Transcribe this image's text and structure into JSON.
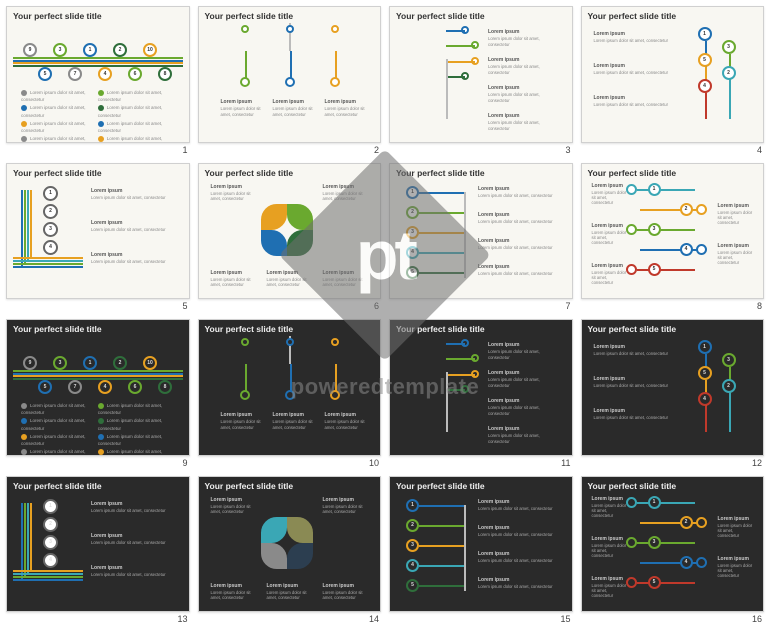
{
  "watermark": {
    "logo": "pt",
    "text": "poweredtemplate"
  },
  "palette": {
    "green": "#6aa92f",
    "blue": "#1f6fb2",
    "dkgreen": "#2f6e3b",
    "orange": "#e7a021",
    "teal": "#3aa7b5",
    "red": "#c0392b",
    "grey": "#8a8a8a",
    "olive": "#8a8a54",
    "navy": "#2c3e50",
    "lime": "#9acd32"
  },
  "common": {
    "title": "Your perfect slide title",
    "lorem_short": "Lorem ipsum dolor sit amet, consectetur",
    "lorem_long": "Lorem ipsum dolor sit amet, consectetur adipiscing elit. Vestibulum. Mauris massa erat, mollis nec.",
    "block_title": "Lorem ipsum"
  },
  "slides": [
    {
      "n": 1,
      "variant": "light",
      "layout": "ten-circles"
    },
    {
      "n": 2,
      "variant": "light",
      "layout": "branch-3"
    },
    {
      "n": 3,
      "variant": "light",
      "layout": "crossroads"
    },
    {
      "n": 4,
      "variant": "light",
      "layout": "right-flow-5"
    },
    {
      "n": 5,
      "variant": "light",
      "layout": "four-stack-stripes"
    },
    {
      "n": 6,
      "variant": "light",
      "layout": "flower"
    },
    {
      "n": 7,
      "variant": "light",
      "layout": "five-branch"
    },
    {
      "n": 8,
      "variant": "light",
      "layout": "timeline-5"
    },
    {
      "n": 9,
      "variant": "dark",
      "layout": "ten-circles"
    },
    {
      "n": 10,
      "variant": "dark",
      "layout": "branch-3"
    },
    {
      "n": 11,
      "variant": "dark",
      "layout": "crossroads"
    },
    {
      "n": 12,
      "variant": "dark",
      "layout": "right-flow-5"
    },
    {
      "n": 13,
      "variant": "dark",
      "layout": "four-stack-stripes"
    },
    {
      "n": 14,
      "variant": "dark",
      "layout": "flower"
    },
    {
      "n": 15,
      "variant": "dark",
      "layout": "five-branch"
    },
    {
      "n": 16,
      "variant": "dark",
      "layout": "timeline-5"
    }
  ],
  "layouts": {
    "ten-circles": {
      "numbers": [
        9,
        3,
        1,
        2,
        10,
        5,
        7,
        4,
        6,
        8
      ],
      "row_top_colors": [
        "grey",
        "green",
        "blue",
        "dkgreen",
        "orange"
      ],
      "row_bottom_colors": [
        "blue",
        "grey",
        "orange",
        "green",
        "dkgreen"
      ],
      "stripe_colors": [
        "green",
        "blue",
        "orange",
        "dkgreen"
      ]
    },
    "branch-3": {
      "colors": [
        "green",
        "blue",
        "orange"
      ]
    },
    "crossroads": {
      "colors": [
        "blue",
        "green",
        "orange",
        "dkgreen"
      ]
    },
    "right-flow-5": {
      "numbers": [
        1,
        3,
        5,
        2,
        4
      ],
      "colors": [
        "blue",
        "green",
        "orange",
        "teal",
        "red"
      ]
    },
    "four-stack-stripes": {
      "numbers": [
        1,
        2,
        3,
        4
      ],
      "stripe_colors": [
        "blue",
        "green",
        "teal",
        "orange"
      ]
    },
    "flower": {
      "light_colors": [
        "green",
        "dkgreen",
        "blue",
        "orange"
      ],
      "dark_colors": [
        "olive",
        "navy",
        "grey",
        "teal"
      ]
    },
    "five-branch": {
      "numbers": [
        1,
        2,
        3,
        4,
        5
      ],
      "colors": [
        "blue",
        "green",
        "orange",
        "teal",
        "dkgreen"
      ]
    },
    "timeline-5": {
      "numbers": [
        1,
        2,
        3,
        4,
        5
      ],
      "colors": [
        "teal",
        "orange",
        "green",
        "blue",
        "red"
      ]
    }
  }
}
